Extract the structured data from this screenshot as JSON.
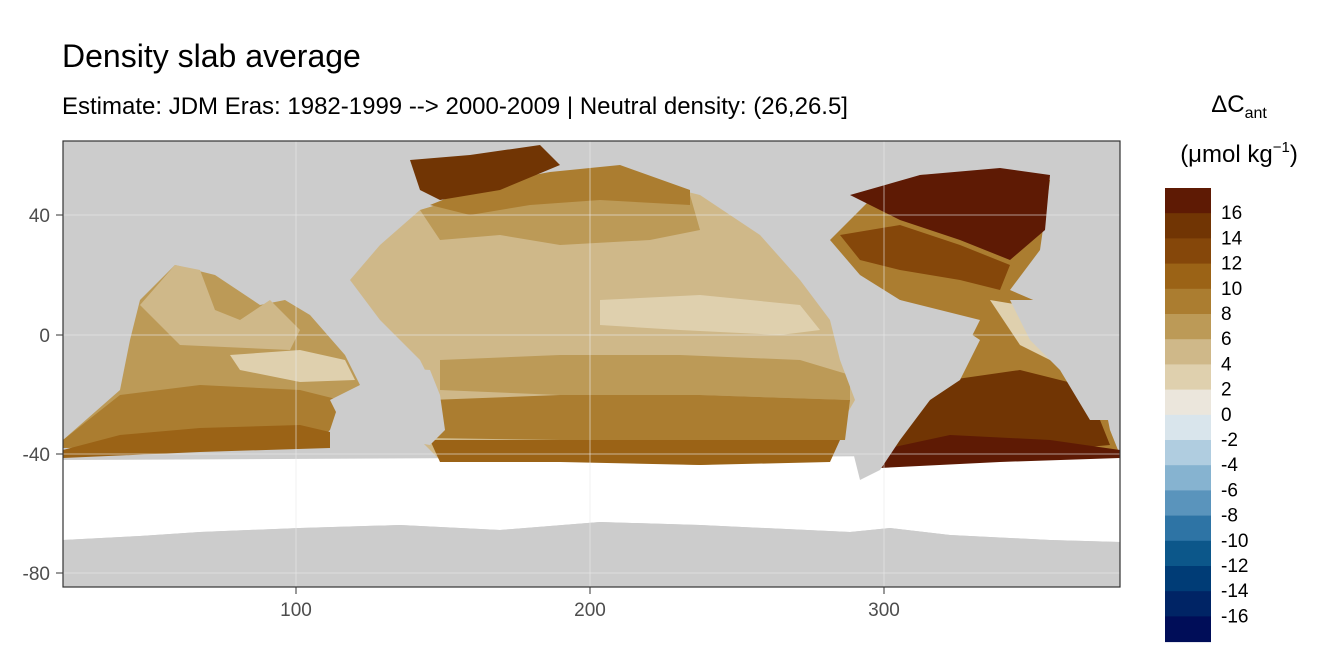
{
  "title": "Density slab average",
  "subtitle": "Estimate: JDM Eras: 1982-1999 --> 2000-2009 | Neutral density: (26,26.5]",
  "legend": {
    "title_symbol": "ΔC",
    "title_subscript": "ant",
    "unit_prefix": "(μmol kg",
    "unit_superscript": "−1",
    "unit_suffix": ")",
    "bins": [
      {
        "color": "#5e1a04",
        "label": "16"
      },
      {
        "color": "#713504",
        "label": "14"
      },
      {
        "color": "#85470a",
        "label": "12"
      },
      {
        "color": "#9b6316",
        "label": "10"
      },
      {
        "color": "#ab7d30",
        "label": "8"
      },
      {
        "color": "#bc9a57",
        "label": "6"
      },
      {
        "color": "#cfb889",
        "label": "4"
      },
      {
        "color": "#dfd0ae",
        "label": "2"
      },
      {
        "color": "#ebe6dc",
        "label": "0"
      },
      {
        "color": "#d9e5ec",
        "label": "-2"
      },
      {
        "color": "#b0cde0",
        "label": "-4"
      },
      {
        "color": "#86b3d0",
        "label": "-6"
      },
      {
        "color": "#5a94bc",
        "label": "-8"
      },
      {
        "color": "#2e74a5",
        "label": "-10"
      },
      {
        "color": "#0c578a",
        "label": "-12"
      },
      {
        "color": "#003c76",
        "label": "-14"
      },
      {
        "color": "#002465",
        "label": "-16"
      },
      {
        "color": "#000d58",
        "label": ""
      }
    ]
  },
  "axes": {
    "x": {
      "range": [
        20,
        382
      ],
      "ticks": [
        {
          "value": 100,
          "label": "100"
        },
        {
          "value": 200,
          "label": "200"
        },
        {
          "value": 300,
          "label": "300"
        }
      ]
    },
    "y": {
      "range": [
        -85,
        65
      ],
      "ticks": [
        {
          "value": 40,
          "label": "40"
        },
        {
          "value": 0,
          "label": "0"
        },
        {
          "value": -40,
          "label": "-40"
        },
        {
          "value": -80,
          "label": "-80"
        }
      ]
    }
  },
  "colors": {
    "land": "#cccccc",
    "no_data": "#ffffff",
    "grid": "#ebebeb",
    "panel_border": "#333333"
  }
}
